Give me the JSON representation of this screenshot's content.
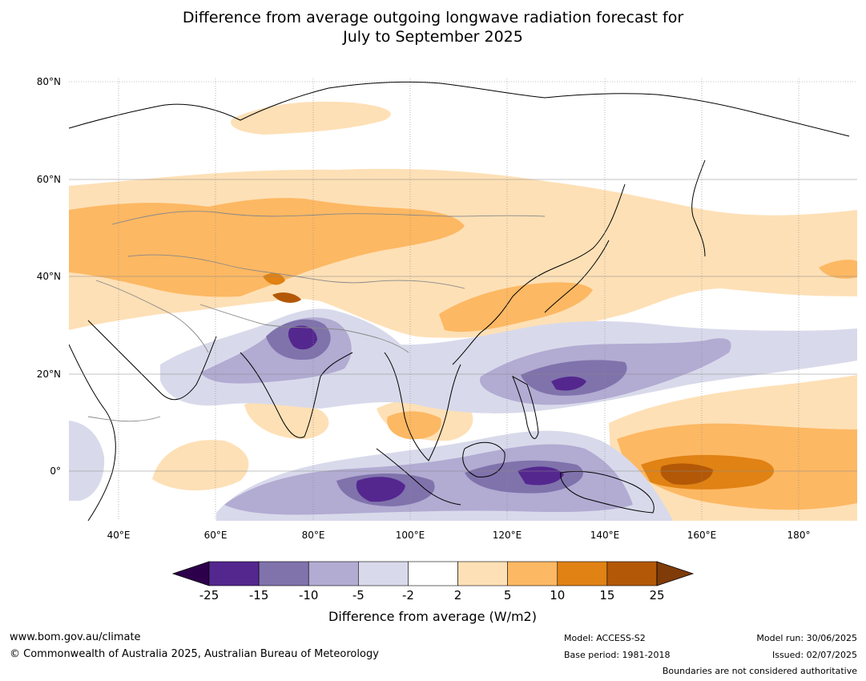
{
  "title_line1": "Difference from average outgoing longwave radiation forecast for",
  "title_line2": "July to September 2025",
  "map": {
    "lon_range": [
      30,
      191
    ],
    "lat_range": [
      -10,
      81
    ],
    "lat_ticks": [
      {
        "value": 80,
        "label": "80°N"
      },
      {
        "value": 60,
        "label": "60°N"
      },
      {
        "value": 40,
        "label": "40°N"
      },
      {
        "value": 20,
        "label": "20°N"
      },
      {
        "value": 0,
        "label": "0°"
      }
    ],
    "lon_ticks": [
      {
        "value": 40,
        "label": "40°E"
      },
      {
        "value": 60,
        "label": "60°E"
      },
      {
        "value": 80,
        "label": "80°E"
      },
      {
        "value": 100,
        "label": "100°E"
      },
      {
        "value": 120,
        "label": "120°E"
      },
      {
        "value": 140,
        "label": "140°E"
      },
      {
        "value": 160,
        "label": "160°E"
      },
      {
        "value": 180,
        "label": "180°"
      }
    ]
  },
  "colorbar": {
    "label": "Difference from average (W/m2)",
    "ticks": [
      "-25",
      "-15",
      "-10",
      "-5",
      "-2",
      "2",
      "5",
      "10",
      "15",
      "25"
    ],
    "colors": [
      "#54278f",
      "#8073ac",
      "#b2abd2",
      "#d8daeb",
      "#ffffff",
      "#fee0b6",
      "#fdb863",
      "#e08214",
      "#b35806"
    ],
    "low_extend_color": "#2d004b",
    "high_extend_color": "#7f3b08"
  },
  "footer": {
    "url": "www.bom.gov.au/climate",
    "copyright": "© Commonwealth of Australia 2025, Australian Bureau of Meteorology",
    "model": "Model: ACCESS-S2",
    "base_period": "Base period: 1981-2018",
    "model_run": "Model run: 30/06/2025",
    "issued": "Issued: 02/07/2025",
    "disclaimer": "Boundaries are not considered authoritative"
  }
}
